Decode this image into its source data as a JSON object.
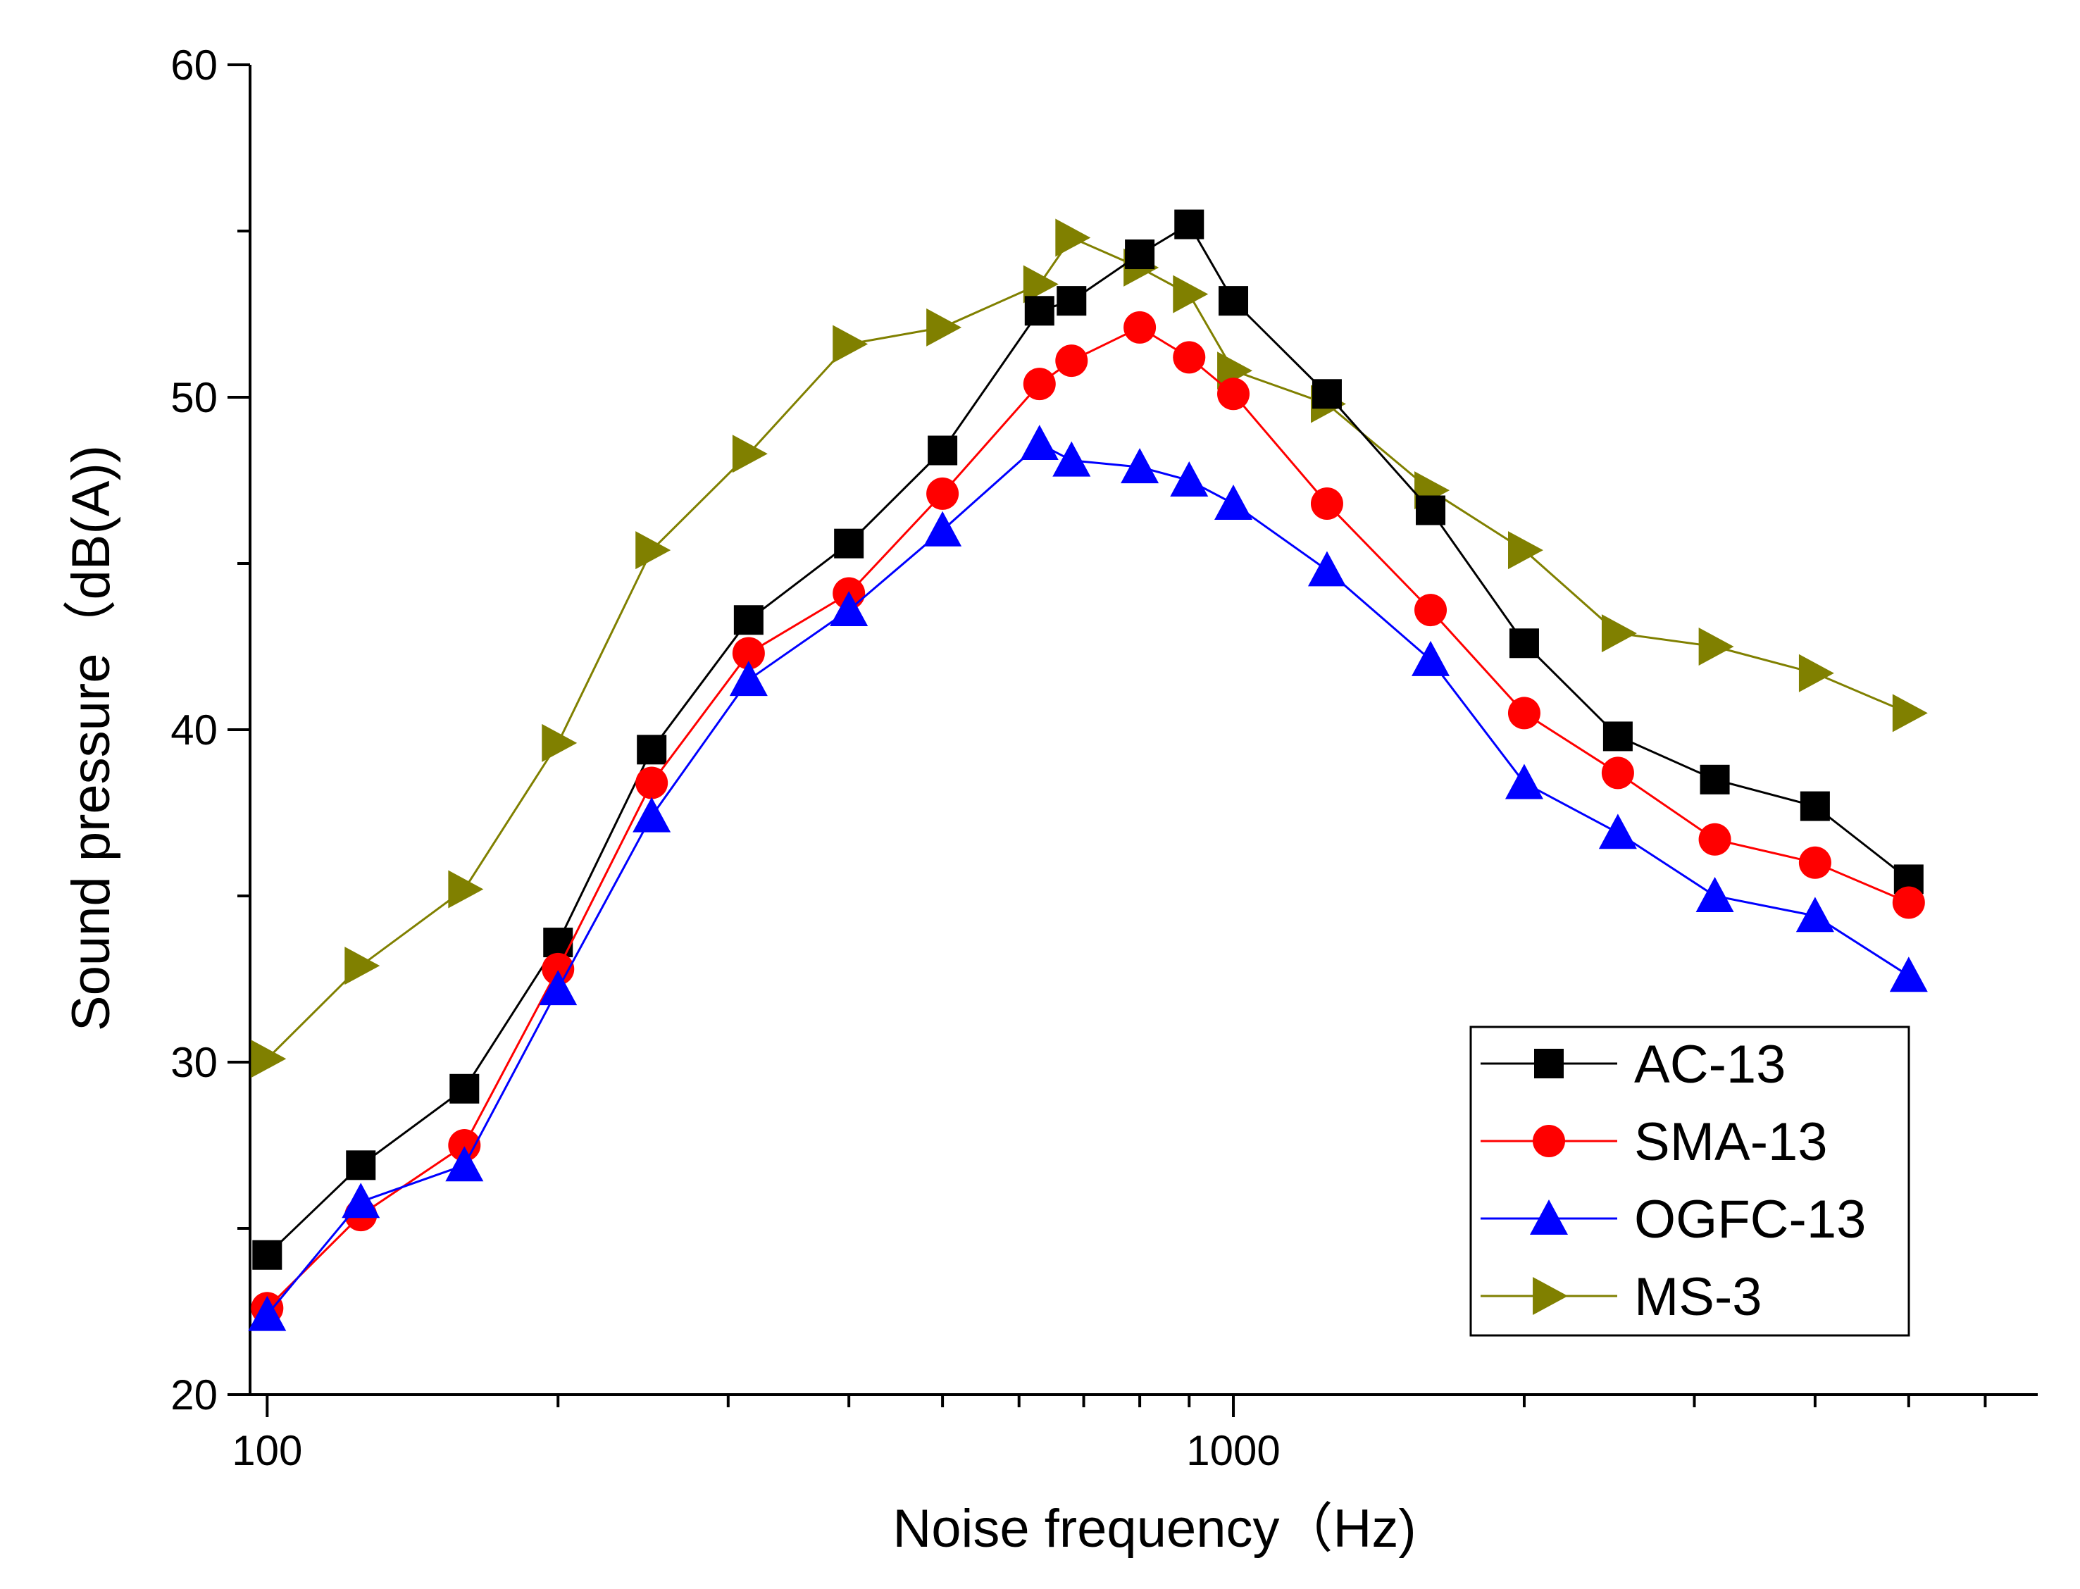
{
  "chart_data": {
    "type": "line",
    "title": "",
    "xlabel": "Noise frequency（Hz)",
    "ylabel": "Sound pressure（dB(A))",
    "xscale": "log",
    "xlim": [
      96,
      6800
    ],
    "ylim": [
      20,
      60
    ],
    "xticks": [
      100,
      1000
    ],
    "xtick_labels": [
      "100",
      "1000"
    ],
    "yticks": [
      20,
      30,
      40,
      50,
      60
    ],
    "ytick_labels": [
      "20",
      "30",
      "40",
      "50",
      "60"
    ],
    "grid": false,
    "legend_position": "bottom-right",
    "x": [
      100,
      125,
      160,
      200,
      250,
      315,
      400,
      500,
      630,
      680,
      800,
      900,
      1000,
      1250,
      1600,
      2000,
      2500,
      3150,
      4000,
      5000
    ],
    "series": [
      {
        "name": "AC-13",
        "color": "#000000",
        "marker": "square",
        "values": [
          24.2,
          26.9,
          29.2,
          33.6,
          39.4,
          43.3,
          45.6,
          48.4,
          52.6,
          52.9,
          54.3,
          55.2,
          52.9,
          50.1,
          46.6,
          42.6,
          39.8,
          38.5,
          37.7,
          35.5
        ]
      },
      {
        "name": "SMA-13",
        "color": "#ff0000",
        "marker": "circle",
        "values": [
          22.6,
          25.4,
          27.5,
          32.8,
          38.4,
          42.3,
          44.1,
          47.1,
          50.4,
          51.1,
          52.1,
          51.2,
          50.1,
          46.8,
          43.6,
          40.5,
          38.7,
          36.7,
          36.0,
          34.8
        ]
      },
      {
        "name": "OGFC-13",
        "color": "#0000ff",
        "marker": "triangle-up",
        "values": [
          22.4,
          25.8,
          26.9,
          32.2,
          37.4,
          41.5,
          43.6,
          46.0,
          48.6,
          48.1,
          47.9,
          47.5,
          46.8,
          44.8,
          42.1,
          38.4,
          36.9,
          35.0,
          34.4,
          32.6
        ]
      },
      {
        "name": "MS-3",
        "color": "#808000",
        "marker": "triangle-right",
        "values": [
          30.1,
          32.9,
          35.2,
          39.6,
          45.4,
          48.3,
          51.6,
          52.1,
          53.4,
          54.8,
          53.9,
          53.1,
          50.8,
          49.8,
          47.2,
          45.4,
          42.9,
          42.5,
          41.7,
          40.5
        ]
      }
    ]
  }
}
